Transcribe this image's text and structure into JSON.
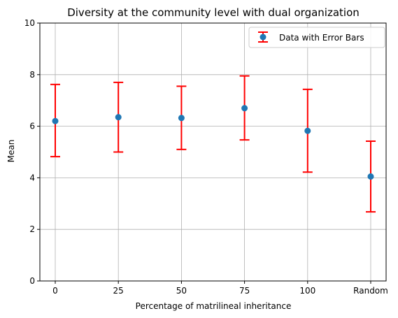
{
  "chart_data": {
    "type": "scatter",
    "title": "Diversity at the community level with dual organization",
    "xlabel": "Percentage of matrilineal inheritance",
    "ylabel": "Mean",
    "categories": [
      "0",
      "25",
      "50",
      "75",
      "100",
      "Random"
    ],
    "series": [
      {
        "name": "Data with Error Bars",
        "values": [
          6.2,
          6.35,
          6.32,
          6.7,
          5.82,
          4.05
        ],
        "error_low": [
          4.82,
          5.0,
          5.1,
          5.47,
          4.22,
          2.68
        ],
        "error_high": [
          7.62,
          7.7,
          7.55,
          7.95,
          7.43,
          5.42
        ]
      }
    ],
    "ylim": [
      0,
      10
    ],
    "yticks": [
      "0",
      "2",
      "4",
      "6",
      "8",
      "10"
    ],
    "grid": true,
    "legend_position": "top-right",
    "colors": {
      "marker": "#1f77b4",
      "error_bar": "#ff0000",
      "grid": "#b0b0b0",
      "axes": "#000000"
    }
  }
}
